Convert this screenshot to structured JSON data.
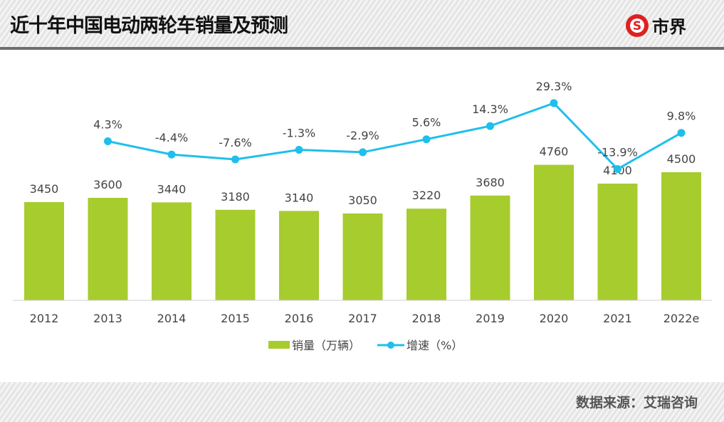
{
  "header": {
    "title": "近十年中国电动两轮车销量及预测",
    "logo_text": "市界"
  },
  "footer": {
    "source": "数据来源：艾瑞咨询"
  },
  "colors": {
    "bar": "#a6cc2e",
    "line": "#1fbfeb",
    "text": "#444444"
  },
  "chart_data": {
    "type": "bar+line",
    "categories": [
      "2012",
      "2013",
      "2014",
      "2015",
      "2016",
      "2017",
      "2018",
      "2019",
      "2020",
      "2021",
      "2022e"
    ],
    "series": [
      {
        "name": "销量（万辆）",
        "type": "bar",
        "values": [
          3450,
          3600,
          3440,
          3180,
          3140,
          3050,
          3220,
          3680,
          4760,
          4100,
          4500
        ],
        "labels": [
          "3450",
          "3600",
          "3440",
          "3180",
          "3140",
          "3050",
          "3220",
          "3680",
          "4760",
          "4100",
          "4500"
        ]
      },
      {
        "name": "增速（%）",
        "type": "line",
        "values": [
          null,
          4.3,
          -4.4,
          -7.6,
          -1.3,
          -2.9,
          5.6,
          14.3,
          29.3,
          -13.9,
          9.8
        ],
        "labels": [
          "",
          "4.3%",
          "-4.4%",
          "-7.6%",
          "-1.3%",
          "-2.9%",
          "5.6%",
          "14.3%",
          "29.3%",
          "-13.9%",
          "9.8%"
        ]
      }
    ],
    "ylim": [
      0,
      7500
    ],
    "y2lim": [
      -100,
      40
    ],
    "grid": false,
    "legend": "bottom"
  }
}
